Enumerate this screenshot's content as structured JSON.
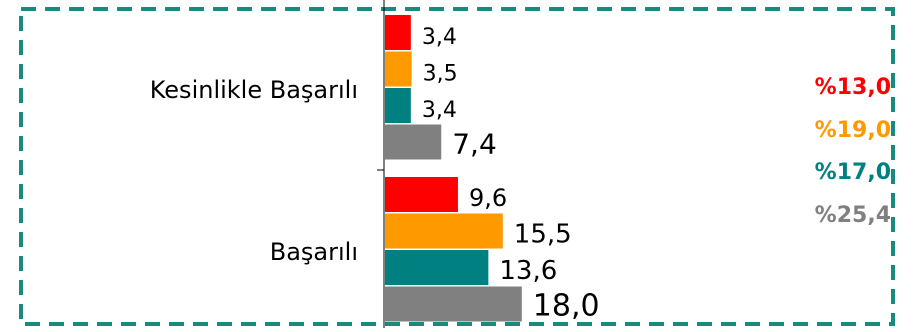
{
  "chart_data": {
    "type": "bar",
    "orientation": "horizontal",
    "categories": [
      "Kesinlikle Başarılı",
      "Başarılı"
    ],
    "series": [
      {
        "values": [
          3.4,
          9.6
        ],
        "labels": [
          "3,4",
          "9,6"
        ],
        "color": "#ff0000"
      },
      {
        "values": [
          3.5,
          15.5
        ],
        "labels": [
          "3,5",
          "15,5"
        ],
        "color": "#ff9900"
      },
      {
        "values": [
          3.4,
          13.6
        ],
        "labels": [
          "3,4",
          "13,6"
        ],
        "color": "#008080"
      },
      {
        "values": [
          7.4,
          18.0
        ],
        "labels": [
          "7,4",
          "18,0"
        ],
        "color": "#808080"
      }
    ],
    "legend_side": [
      {
        "text": "%13,0",
        "color": "#ff0000"
      },
      {
        "text": "%19,0",
        "color": "#ff9900"
      },
      {
        "text": "%17,0",
        "color": "#008080"
      },
      {
        "text": "%25,4",
        "color": "#808080"
      }
    ],
    "border_color": "#1a8a80",
    "grid": false
  }
}
